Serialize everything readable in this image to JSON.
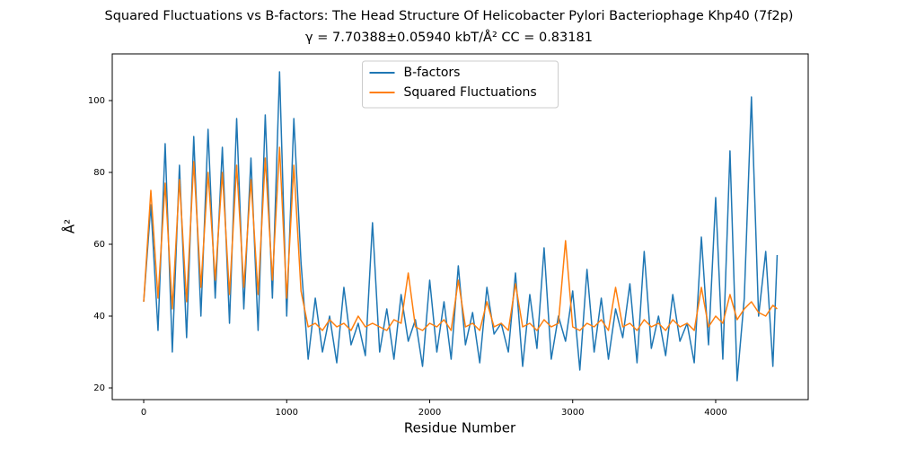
{
  "chart_data": {
    "type": "line",
    "title": "Squared Fluctuations vs B-factors: The Head Structure Of Helicobacter Pylori Bacteriophage Khp40 (7f2p)",
    "subtitle": "γ = 7.70388±0.05940 kbT/Å²  CC = 0.83181",
    "x_label": "Residue Number",
    "y_label": "Å²",
    "x": [
      0,
      50,
      100,
      150,
      200,
      250,
      300,
      350,
      400,
      450,
      500,
      550,
      600,
      650,
      700,
      750,
      800,
      850,
      900,
      950,
      1000,
      1050,
      1100,
      1150,
      1200,
      1250,
      1300,
      1350,
      1400,
      1450,
      1500,
      1550,
      1600,
      1650,
      1700,
      1750,
      1800,
      1850,
      1900,
      1950,
      2000,
      2050,
      2100,
      2150,
      2200,
      2250,
      2300,
      2350,
      2400,
      2450,
      2500,
      2550,
      2600,
      2650,
      2700,
      2750,
      2800,
      2850,
      2900,
      2950,
      3000,
      3050,
      3100,
      3150,
      3200,
      3250,
      3300,
      3350,
      3400,
      3450,
      3500,
      3550,
      3600,
      3650,
      3700,
      3750,
      3800,
      3850,
      3900,
      3950,
      4000,
      4050,
      4100,
      4150,
      4200,
      4250,
      4300,
      4350,
      4400,
      4430
    ],
    "series": [
      {
        "name": "B-factors",
        "color": "#1f77b4",
        "values": [
          44,
          71,
          36,
          88,
          30,
          82,
          34,
          90,
          40,
          92,
          45,
          87,
          38,
          95,
          42,
          84,
          36,
          96,
          45,
          108,
          40,
          95,
          55,
          28,
          45,
          30,
          40,
          27,
          48,
          32,
          38,
          29,
          66,
          30,
          42,
          28,
          46,
          33,
          39,
          26,
          50,
          30,
          44,
          28,
          54,
          32,
          41,
          27,
          48,
          35,
          38,
          30,
          52,
          26,
          46,
          31,
          59,
          28,
          40,
          33,
          47,
          25,
          53,
          30,
          45,
          28,
          42,
          34,
          49,
          27,
          58,
          31,
          40,
          29,
          46,
          33,
          38,
          27,
          62,
          32,
          73,
          28,
          86,
          22,
          45,
          101,
          40,
          58,
          26,
          57
        ]
      },
      {
        "name": "Squared Fluctuations",
        "color": "#ff7f0e",
        "values": [
          44,
          75,
          45,
          77,
          42,
          78,
          44,
          83,
          48,
          80,
          50,
          80,
          46,
          82,
          48,
          78,
          46,
          84,
          50,
          87,
          45,
          82,
          47,
          37,
          38,
          36,
          39,
          37,
          38,
          36,
          40,
          37,
          38,
          37,
          36,
          39,
          38,
          52,
          37,
          36,
          38,
          37,
          39,
          36,
          50,
          37,
          38,
          36,
          44,
          37,
          38,
          36,
          49,
          37,
          38,
          36,
          39,
          37,
          38,
          61,
          37,
          36,
          38,
          37,
          39,
          36,
          48,
          37,
          38,
          36,
          39,
          37,
          38,
          36,
          39,
          37,
          38,
          36,
          48,
          37,
          40,
          38,
          46,
          39,
          42,
          44,
          41,
          40,
          43,
          42
        ]
      }
    ],
    "xlim": [
      -220,
      4647
    ],
    "ylim": [
      16.75,
      113
    ],
    "xticks": [
      0,
      1000,
      2000,
      3000,
      4000
    ],
    "yticks": [
      20,
      40,
      60,
      80,
      100
    ],
    "grid": false,
    "legend": "upper center"
  }
}
